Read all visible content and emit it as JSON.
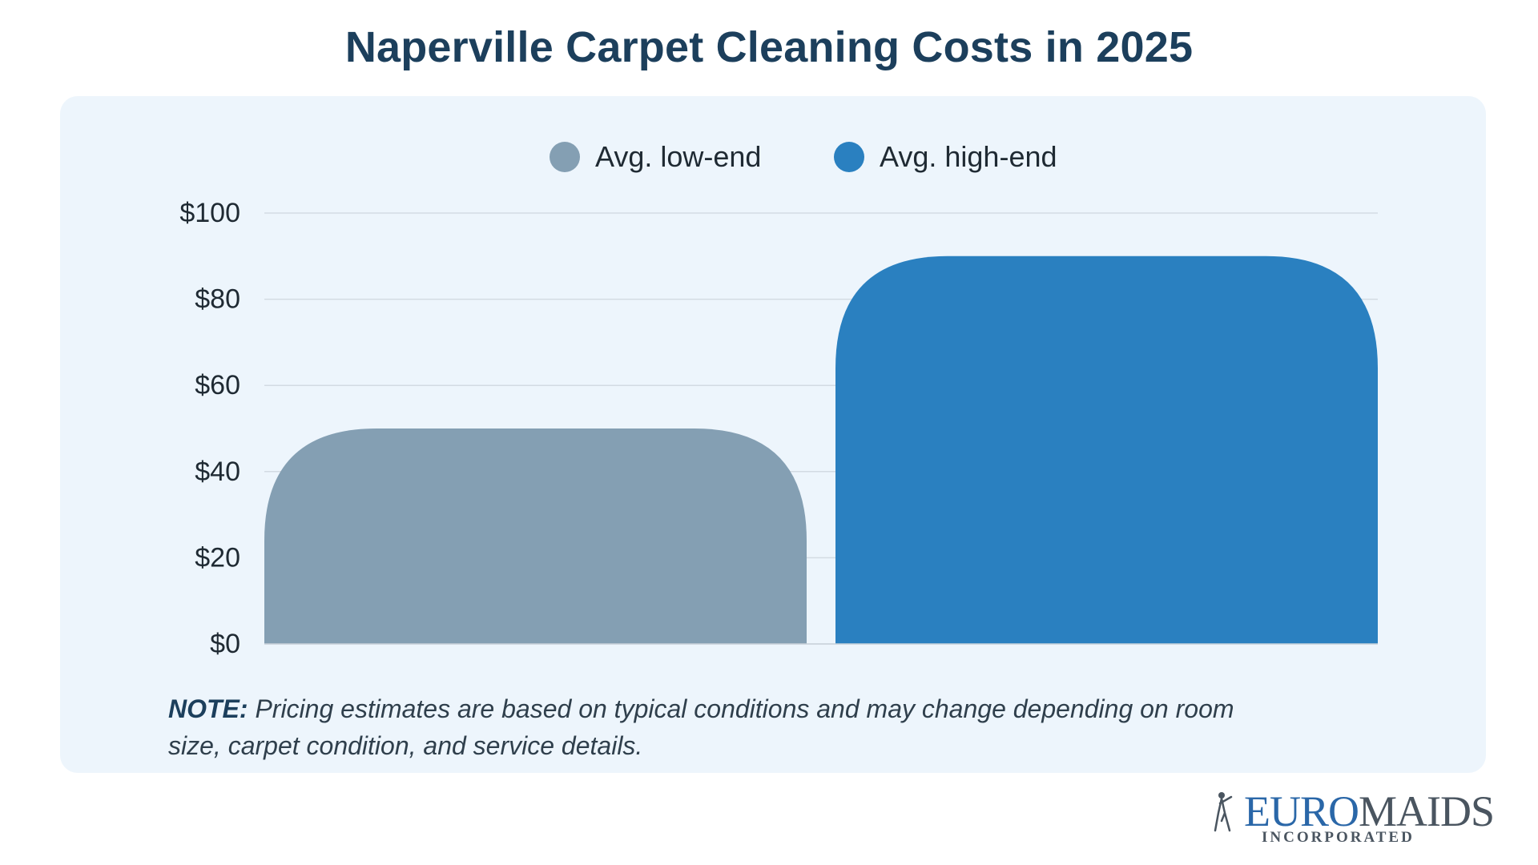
{
  "title": "Naperville Carpet Cleaning Costs in 2025",
  "note": {
    "label": "NOTE:",
    "text": " Pricing estimates are based on typical conditions and may change depending on room size, carpet condition, and service details."
  },
  "logo": {
    "part1": "EURO",
    "part2": "MAIDS",
    "sub": "INCORPORATED"
  },
  "chart_data": {
    "type": "bar",
    "categories": [
      "Avg. low-end",
      "Avg. high-end"
    ],
    "values": [
      50,
      90
    ],
    "colors": [
      "#849fb3",
      "#2a80c0"
    ],
    "title": "Naperville Carpet Cleaning Costs in 2025",
    "xlabel": "",
    "ylabel": "",
    "ylim": [
      0,
      100
    ],
    "yticks": [
      0,
      20,
      40,
      60,
      80,
      100
    ],
    "ytick_labels": [
      "$0",
      "$20",
      "$40",
      "$60",
      "$80",
      "$100"
    ],
    "grid": true,
    "legend": {
      "position": "top-center",
      "entries": [
        "Avg. low-end",
        "Avg. high-end"
      ]
    }
  }
}
